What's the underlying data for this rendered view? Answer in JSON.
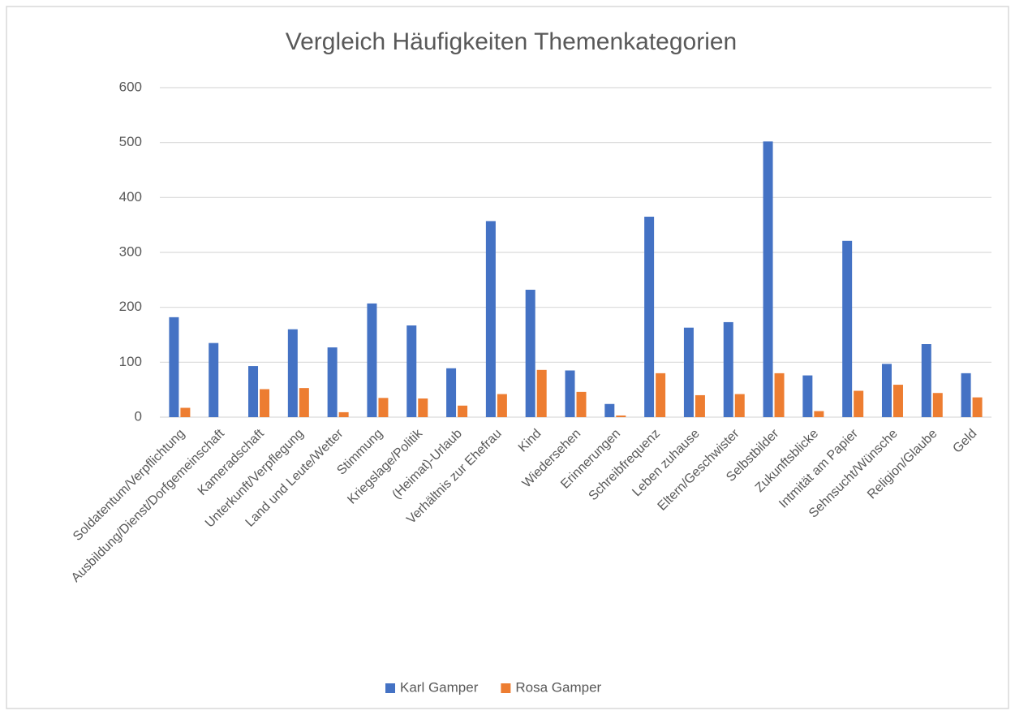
{
  "chart_data": {
    "type": "bar",
    "title": "Vergleich Häufigkeiten Themenkategorien",
    "categories": [
      "Soldatentum/Verpflichtung",
      "Ausbildung/Dienst/Dorfgemeinschaft",
      "Kameradschaft",
      "Unterkunft/Verpflegung",
      "Land und Leute/Wetter",
      "Stimmung",
      "Kriegslage/Politik",
      "(Heimat)-Urlaub",
      "Verhältnis zur Ehefrau",
      "Kind",
      "Wiedersehen",
      "Erinnerungen",
      "Schreibfrequenz",
      "Leben zuhause",
      "Eltern/Geschwister",
      "Selbstbilder",
      "Zukunftsblicke",
      "Intmität am Papier",
      "Sehnsucht/Wünsche",
      "Religion/Glaube",
      "Geld"
    ],
    "series": [
      {
        "name": "Karl Gamper",
        "color": "#4472c4",
        "values": [
          182,
          135,
          93,
          160,
          127,
          207,
          167,
          89,
          357,
          232,
          85,
          24,
          365,
          163,
          173,
          502,
          76,
          321,
          97,
          133,
          80
        ]
      },
      {
        "name": "Rosa Gamper",
        "color": "#ed7d31",
        "values": [
          17,
          0,
          51,
          53,
          9,
          35,
          34,
          21,
          42,
          86,
          46,
          3,
          80,
          40,
          42,
          80,
          11,
          48,
          59,
          44,
          36
        ]
      }
    ],
    "ylim": [
      0,
      600
    ],
    "yticks": [
      0,
      100,
      200,
      300,
      400,
      500,
      600
    ],
    "grid": true,
    "legend": "bottom"
  }
}
